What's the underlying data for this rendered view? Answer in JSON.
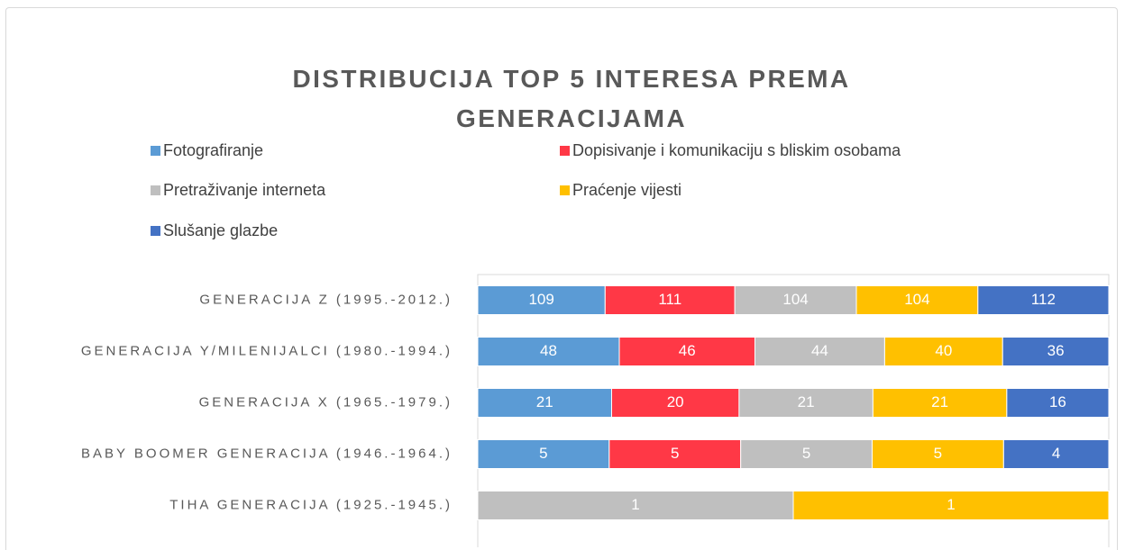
{
  "chart_data": {
    "type": "stacked_bar_100",
    "title": "DISTRIBUCIJA TOP 5 INTERESA PREMA GENERACIJAMA",
    "orientation": "horizontal",
    "legend": "top",
    "categories": [
      "GENERACIJA Z (1995.-2012.)",
      "GENERACIJA Y/MILENIJALCI (1980.-1994.)",
      "GENERACIJA X (1965.-1979.)",
      "BABY BOOMER GENERACIJA (1946.-1964.)",
      "TIHA GENERACIJA (1925.-1945.)"
    ],
    "series": [
      {
        "name": "Fotografiranje",
        "color": "#5b9bd5",
        "values": [
          109,
          48,
          21,
          5,
          null
        ]
      },
      {
        "name": "Dopisivanje i komunikaciju s bliskim osobama",
        "color": "#ff3846",
        "values": [
          111,
          46,
          20,
          5,
          null
        ]
      },
      {
        "name": "Pretraživanje interneta",
        "color": "#bfbfbf",
        "values": [
          104,
          44,
          21,
          5,
          1
        ]
      },
      {
        "name": "Praćenje vijesti",
        "color": "#ffc000",
        "values": [
          104,
          40,
          21,
          5,
          1
        ]
      },
      {
        "name": "Slušanje glazbe",
        "color": "#4472c4",
        "values": [
          112,
          36,
          16,
          4,
          null
        ]
      }
    ]
  }
}
